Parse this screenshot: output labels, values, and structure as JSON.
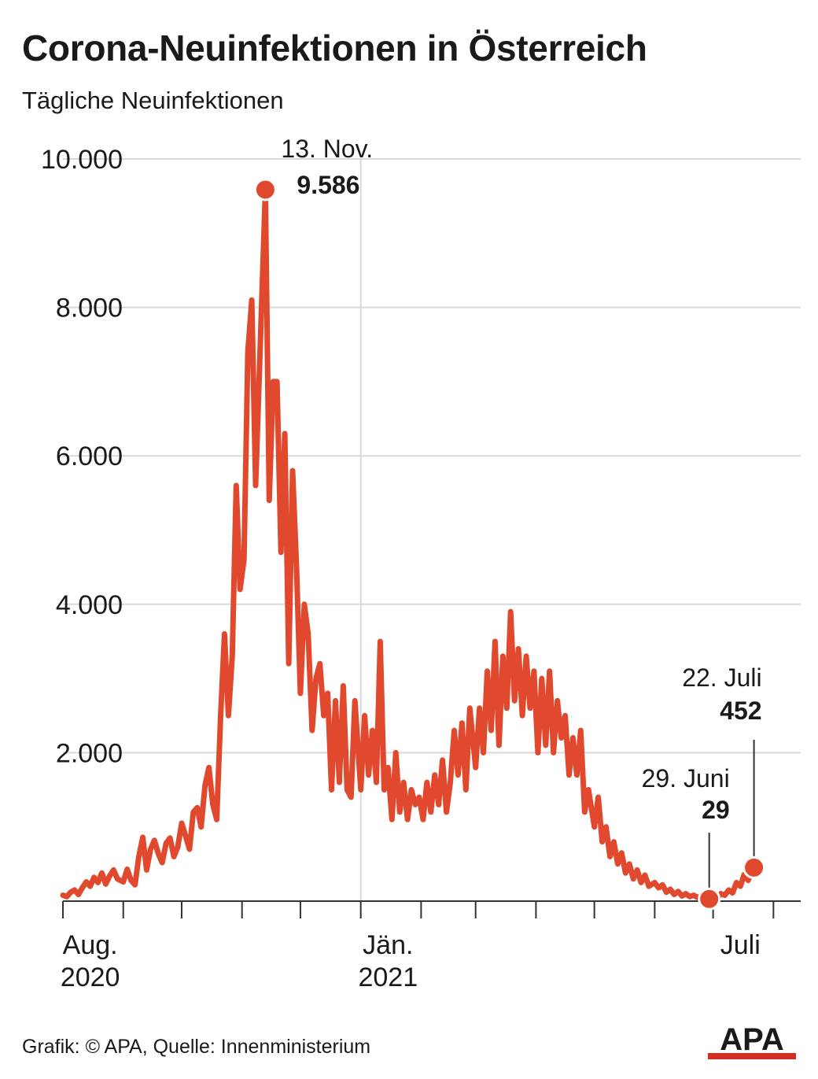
{
  "title": "Corona-Neuinfektionen in Österreich",
  "subtitle": "Tägliche Neuinfektionen",
  "source": "Grafik: © APA, Quelle: Innenministerium",
  "logo_text": "APA",
  "colors": {
    "line": "#e0492d",
    "grid": "#d9d9d9",
    "axis": "#333333",
    "text": "#1a1a1a",
    "logo_bar": "#d62d22"
  },
  "chart_data": {
    "type": "line",
    "title": "Corona-Neuinfektionen in Österreich",
    "ylabel": "Tägliche Neuinfektionen",
    "xlabel": "",
    "ylim": [
      0,
      10000
    ],
    "xlim": [
      "2020-08-01",
      "2021-07-31"
    ],
    "grid": true,
    "y_ticks": [
      2000,
      4000,
      6000,
      8000,
      10000
    ],
    "y_tick_labels": [
      "2.000",
      "4.000",
      "6.000",
      "8.000",
      "10.000"
    ],
    "x_ticks": [
      "2020-08-01",
      "2020-09-01",
      "2020-10-01",
      "2020-11-01",
      "2020-12-01",
      "2021-01-01",
      "2021-02-01",
      "2021-03-01",
      "2021-04-01",
      "2021-05-01",
      "2021-06-01",
      "2021-07-01",
      "2021-08-01"
    ],
    "x_labels": [
      {
        "date": "2020-08-15",
        "line1": "Aug.",
        "line2": "2020"
      },
      {
        "date": "2021-01-15",
        "line1": "Jän.",
        "line2": "2021"
      },
      {
        "date": "2021-07-15",
        "line1": "Juli",
        "line2": ""
      }
    ],
    "vertical_gridline": "2021-01-01",
    "series": [
      {
        "points": [
          [
            "2020-08-01",
            80
          ],
          [
            "2020-08-03",
            60
          ],
          [
            "2020-08-05",
            120
          ],
          [
            "2020-08-07",
            150
          ],
          [
            "2020-08-09",
            90
          ],
          [
            "2020-08-11",
            180
          ],
          [
            "2020-08-13",
            260
          ],
          [
            "2020-08-15",
            200
          ],
          [
            "2020-08-17",
            320
          ],
          [
            "2020-08-19",
            250
          ],
          [
            "2020-08-21",
            380
          ],
          [
            "2020-08-23",
            230
          ],
          [
            "2020-08-25",
            340
          ],
          [
            "2020-08-27",
            420
          ],
          [
            "2020-08-29",
            300
          ],
          [
            "2020-09-01",
            260
          ],
          [
            "2020-09-03",
            430
          ],
          [
            "2020-09-05",
            280
          ],
          [
            "2020-09-07",
            220
          ],
          [
            "2020-09-09",
            600
          ],
          [
            "2020-09-11",
            860
          ],
          [
            "2020-09-13",
            420
          ],
          [
            "2020-09-15",
            700
          ],
          [
            "2020-09-17",
            820
          ],
          [
            "2020-09-19",
            640
          ],
          [
            "2020-09-21",
            520
          ],
          [
            "2020-09-23",
            780
          ],
          [
            "2020-09-25",
            850
          ],
          [
            "2020-09-27",
            600
          ],
          [
            "2020-09-29",
            730
          ],
          [
            "2020-10-01",
            1050
          ],
          [
            "2020-10-03",
            880
          ],
          [
            "2020-10-05",
            700
          ],
          [
            "2020-10-07",
            1200
          ],
          [
            "2020-10-09",
            1260
          ],
          [
            "2020-10-11",
            1000
          ],
          [
            "2020-10-13",
            1560
          ],
          [
            "2020-10-15",
            1800
          ],
          [
            "2020-10-17",
            1300
          ],
          [
            "2020-10-19",
            1100
          ],
          [
            "2020-10-21",
            2500
          ],
          [
            "2020-10-23",
            3600
          ],
          [
            "2020-10-25",
            2500
          ],
          [
            "2020-10-27",
            3300
          ],
          [
            "2020-10-29",
            5600
          ],
          [
            "2020-10-31",
            4200
          ],
          [
            "2020-11-02",
            4600
          ],
          [
            "2020-11-04",
            7400
          ],
          [
            "2020-11-06",
            8100
          ],
          [
            "2020-11-08",
            5600
          ],
          [
            "2020-11-10",
            7200
          ],
          [
            "2020-11-13",
            9586
          ],
          [
            "2020-11-15",
            5400
          ],
          [
            "2020-11-17",
            7000
          ],
          [
            "2020-11-19",
            7000
          ],
          [
            "2020-11-21",
            4700
          ],
          [
            "2020-11-23",
            6300
          ],
          [
            "2020-11-25",
            3200
          ],
          [
            "2020-11-27",
            5800
          ],
          [
            "2020-11-29",
            4500
          ],
          [
            "2020-12-01",
            2800
          ],
          [
            "2020-12-03",
            4000
          ],
          [
            "2020-12-05",
            3600
          ],
          [
            "2020-12-07",
            2300
          ],
          [
            "2020-12-09",
            3000
          ],
          [
            "2020-12-11",
            3200
          ],
          [
            "2020-12-13",
            2500
          ],
          [
            "2020-12-15",
            2800
          ],
          [
            "2020-12-17",
            1500
          ],
          [
            "2020-12-19",
            2700
          ],
          [
            "2020-12-21",
            1600
          ],
          [
            "2020-12-23",
            2900
          ],
          [
            "2020-12-25",
            1500
          ],
          [
            "2020-12-27",
            1400
          ],
          [
            "2020-12-29",
            2700
          ],
          [
            "2021-01-01",
            1500
          ],
          [
            "2021-01-03",
            2500
          ],
          [
            "2021-01-05",
            1700
          ],
          [
            "2021-01-07",
            2300
          ],
          [
            "2021-01-09",
            1600
          ],
          [
            "2021-01-11",
            3500
          ],
          [
            "2021-01-13",
            1500
          ],
          [
            "2021-01-15",
            1800
          ],
          [
            "2021-01-17",
            1100
          ],
          [
            "2021-01-19",
            2000
          ],
          [
            "2021-01-21",
            1200
          ],
          [
            "2021-01-23",
            1600
          ],
          [
            "2021-01-25",
            1100
          ],
          [
            "2021-01-27",
            1500
          ],
          [
            "2021-01-29",
            1300
          ],
          [
            "2021-01-31",
            1400
          ],
          [
            "2021-02-02",
            1100
          ],
          [
            "2021-02-04",
            1600
          ],
          [
            "2021-02-06",
            1200
          ],
          [
            "2021-02-08",
            1700
          ],
          [
            "2021-02-10",
            1300
          ],
          [
            "2021-02-12",
            1900
          ],
          [
            "2021-02-14",
            1200
          ],
          [
            "2021-02-16",
            1600
          ],
          [
            "2021-02-18",
            2300
          ],
          [
            "2021-02-20",
            1700
          ],
          [
            "2021-02-22",
            2400
          ],
          [
            "2021-02-24",
            1500
          ],
          [
            "2021-02-26",
            2600
          ],
          [
            "2021-03-01",
            1800
          ],
          [
            "2021-03-03",
            2600
          ],
          [
            "2021-03-05",
            2000
          ],
          [
            "2021-03-07",
            3100
          ],
          [
            "2021-03-09",
            2300
          ],
          [
            "2021-03-11",
            3500
          ],
          [
            "2021-03-13",
            2100
          ],
          [
            "2021-03-15",
            3300
          ],
          [
            "2021-03-17",
            2600
          ],
          [
            "2021-03-19",
            3900
          ],
          [
            "2021-03-21",
            2700
          ],
          [
            "2021-03-23",
            3400
          ],
          [
            "2021-03-25",
            2500
          ],
          [
            "2021-03-27",
            3300
          ],
          [
            "2021-03-29",
            2600
          ],
          [
            "2021-03-31",
            3100
          ],
          [
            "2021-04-02",
            2000
          ],
          [
            "2021-04-04",
            3000
          ],
          [
            "2021-04-06",
            2100
          ],
          [
            "2021-04-08",
            3100
          ],
          [
            "2021-04-10",
            2000
          ],
          [
            "2021-04-12",
            2700
          ],
          [
            "2021-04-14",
            2200
          ],
          [
            "2021-04-16",
            2500
          ],
          [
            "2021-04-18",
            1700
          ],
          [
            "2021-04-20",
            2200
          ],
          [
            "2021-04-22",
            1700
          ],
          [
            "2021-04-24",
            2300
          ],
          [
            "2021-04-26",
            1200
          ],
          [
            "2021-04-28",
            1500
          ],
          [
            "2021-05-01",
            1000
          ],
          [
            "2021-05-03",
            1400
          ],
          [
            "2021-05-05",
            800
          ],
          [
            "2021-05-07",
            1000
          ],
          [
            "2021-05-09",
            600
          ],
          [
            "2021-05-11",
            800
          ],
          [
            "2021-05-13",
            500
          ],
          [
            "2021-05-15",
            650
          ],
          [
            "2021-05-17",
            380
          ],
          [
            "2021-05-19",
            500
          ],
          [
            "2021-05-21",
            300
          ],
          [
            "2021-05-23",
            420
          ],
          [
            "2021-05-25",
            250
          ],
          [
            "2021-05-27",
            350
          ],
          [
            "2021-05-29",
            200
          ],
          [
            "2021-06-01",
            250
          ],
          [
            "2021-06-03",
            180
          ],
          [
            "2021-06-05",
            220
          ],
          [
            "2021-06-07",
            120
          ],
          [
            "2021-06-09",
            160
          ],
          [
            "2021-06-11",
            90
          ],
          [
            "2021-06-13",
            130
          ],
          [
            "2021-06-15",
            70
          ],
          [
            "2021-06-17",
            100
          ],
          [
            "2021-06-19",
            60
          ],
          [
            "2021-06-21",
            80
          ],
          [
            "2021-06-23",
            50
          ],
          [
            "2021-06-25",
            70
          ],
          [
            "2021-06-27",
            40
          ],
          [
            "2021-06-29",
            29
          ],
          [
            "2021-07-01",
            60
          ],
          [
            "2021-07-03",
            40
          ],
          [
            "2021-07-05",
            100
          ],
          [
            "2021-07-07",
            80
          ],
          [
            "2021-07-09",
            150
          ],
          [
            "2021-07-11",
            110
          ],
          [
            "2021-07-13",
            250
          ],
          [
            "2021-07-15",
            200
          ],
          [
            "2021-07-17",
            360
          ],
          [
            "2021-07-19",
            280
          ],
          [
            "2021-07-22",
            452
          ]
        ]
      }
    ],
    "annotations": [
      {
        "date": "2020-11-13",
        "value": 9586,
        "label_date": "13. Nov.",
        "label_value": "9.586"
      },
      {
        "date": "2021-06-29",
        "value": 29,
        "label_date": "29. Juni",
        "label_value": "29"
      },
      {
        "date": "2021-07-22",
        "value": 452,
        "label_date": "22. Juli",
        "label_value": "452"
      }
    ]
  }
}
